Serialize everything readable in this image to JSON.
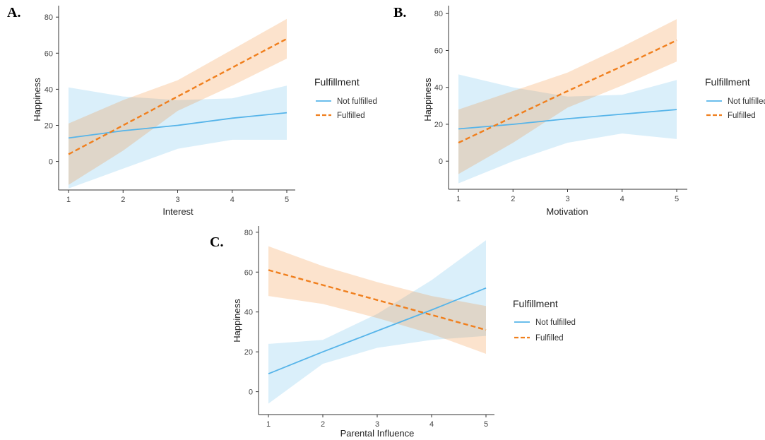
{
  "chart_data": [
    {
      "panel": "A.",
      "type": "line",
      "xlabel": "Interest",
      "ylabel": "Happiness",
      "xlim": [
        1,
        5
      ],
      "ylim": [
        -17,
        84
      ],
      "x_ticks": [
        1,
        2,
        3,
        4,
        5
      ],
      "y_ticks": [
        0,
        20,
        40,
        60,
        80
      ],
      "grid": false,
      "legend": {
        "title": "Fulfillment",
        "placement": "right"
      },
      "series": [
        {
          "name": "Not fulfilled",
          "color": "#56B4E9",
          "dash": "solid",
          "x": [
            1,
            2,
            3,
            4,
            5
          ],
          "y": [
            13,
            17,
            20,
            24,
            27
          ],
          "ci_lower": [
            -15,
            -4,
            7,
            12,
            12
          ],
          "ci_upper": [
            41,
            36,
            34,
            35,
            42
          ]
        },
        {
          "name": "Fulfilled",
          "color": "#F07F1D",
          "dash": "dashed",
          "x": [
            1,
            2,
            3,
            4,
            5
          ],
          "y": [
            4,
            20,
            36,
            52,
            68
          ],
          "ci_lower": [
            -13,
            6,
            28,
            42,
            57
          ],
          "ci_upper": [
            21,
            34,
            45,
            62,
            79
          ]
        }
      ]
    },
    {
      "panel": "B.",
      "type": "line",
      "xlabel": "Motivation",
      "ylabel": "Happiness",
      "xlim": [
        1,
        5
      ],
      "ylim": [
        -16,
        82
      ],
      "x_ticks": [
        1,
        2,
        3,
        4,
        5
      ],
      "y_ticks": [
        0,
        20,
        40,
        60,
        80
      ],
      "grid": false,
      "legend": {
        "title": "Fulfillment",
        "placement": "right"
      },
      "series": [
        {
          "name": "Not fulfilled",
          "color": "#56B4E9",
          "dash": "solid",
          "x": [
            1,
            2,
            3,
            4,
            5
          ],
          "y": [
            17.5,
            20,
            23,
            25.5,
            28
          ],
          "ci_lower": [
            -12,
            0,
            10,
            15,
            12
          ],
          "ci_upper": [
            47,
            40,
            35,
            36,
            44
          ]
        },
        {
          "name": "Fulfilled",
          "color": "#F07F1D",
          "dash": "dashed",
          "x": [
            1,
            2,
            3,
            4,
            5
          ],
          "y": [
            10,
            24,
            38,
            51.5,
            65.5
          ],
          "ci_lower": [
            -7,
            10,
            29,
            41,
            54
          ],
          "ci_upper": [
            28,
            38,
            48,
            62,
            77
          ]
        }
      ]
    },
    {
      "panel": "C.",
      "type": "line",
      "xlabel": "Parental Influence",
      "ylabel": "Happiness",
      "xlim": [
        1,
        5
      ],
      "ylim": [
        -9,
        81
      ],
      "x_ticks": [
        1,
        2,
        3,
        4,
        5
      ],
      "y_ticks": [
        0,
        20,
        40,
        60,
        80
      ],
      "grid": false,
      "legend": {
        "title": "Fulfillment",
        "placement": "right"
      },
      "series": [
        {
          "name": "Not fulfilled",
          "color": "#56B4E9",
          "dash": "solid",
          "x": [
            1,
            2,
            3,
            4,
            5
          ],
          "y": [
            9,
            20,
            30.5,
            41,
            52
          ],
          "ci_lower": [
            -6,
            14,
            22,
            26,
            28
          ],
          "ci_upper": [
            24,
            26,
            39,
            56,
            76
          ]
        },
        {
          "name": "Fulfilled",
          "color": "#F07F1D",
          "dash": "dashed",
          "x": [
            1,
            2,
            3,
            4,
            5
          ],
          "y": [
            61,
            53.5,
            46,
            38.5,
            31
          ],
          "ci_lower": [
            48,
            44,
            37,
            29,
            19
          ],
          "ci_upper": [
            73,
            63,
            55,
            48,
            43
          ]
        }
      ]
    }
  ]
}
